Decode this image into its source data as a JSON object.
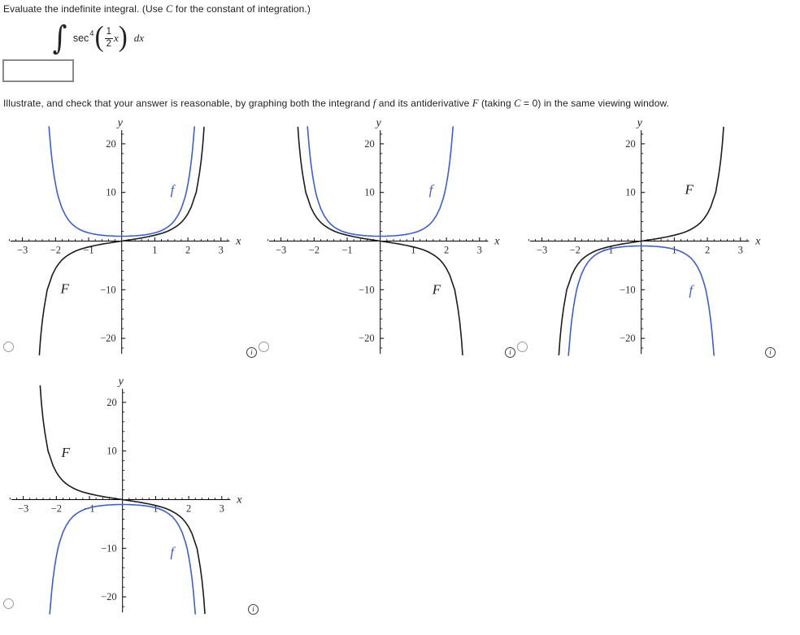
{
  "problem": {
    "prompt_parts": [
      {
        "t": "Evaluate the indefinite integral. (Use "
      },
      {
        "t": "C",
        "v": 1
      },
      {
        "t": " for the constant of integration.)"
      }
    ],
    "integral": {
      "sign": "∫",
      "func": "sec",
      "exponent": "4",
      "open_paren": "(",
      "frac_num": "1",
      "frac_den": "2",
      "variable": "x",
      "close_paren": ")",
      "differential": "dx"
    },
    "answer_input": {
      "value": "",
      "placeholder": ""
    }
  },
  "instruction_parts": [
    {
      "t": "Illustrate, and check that your answer is reasonable, by graphing both the integrand "
    },
    {
      "t": "f",
      "v": 1
    },
    {
      "t": " and its antiderivative "
    },
    {
      "t": "F",
      "v": 1
    },
    {
      "t": " (taking "
    },
    {
      "t": "C",
      "v": 1
    },
    {
      "t": " = 0) in the same viewing window."
    }
  ],
  "icons": {
    "info_glyph": "i"
  },
  "colors": {
    "f_curve": "#3F5FC5",
    "F_curve": "#1c1c1c",
    "axis": "#000000",
    "tick_label": "#2e2e2e"
  },
  "curves": {
    "f_pos": [
      [
        -2.2,
        23.5
      ],
      [
        -2.14,
        18.8
      ],
      [
        -2.1,
        16.3
      ],
      [
        -2.05,
        13.7
      ],
      [
        -2.0,
        11.7
      ],
      [
        -1.95,
        10.0
      ],
      [
        -1.9,
        8.7
      ],
      [
        -1.8,
        6.7
      ],
      [
        -1.7,
        5.3
      ],
      [
        -1.6,
        4.24
      ],
      [
        -1.5,
        3.49
      ],
      [
        -1.4,
        2.92
      ],
      [
        -1.3,
        2.49
      ],
      [
        -1.2,
        2.16
      ],
      [
        -1.1,
        1.89
      ],
      [
        -1.0,
        1.69
      ],
      [
        -0.9,
        1.52
      ],
      [
        -0.8,
        1.39
      ],
      [
        -0.7,
        1.28
      ],
      [
        -0.6,
        1.2
      ],
      [
        -0.5,
        1.13
      ],
      [
        -0.4,
        1.08
      ],
      [
        -0.3,
        1.05
      ],
      [
        -0.2,
        1.02
      ],
      [
        -0.1,
        1.01
      ],
      [
        0,
        1
      ],
      [
        0.1,
        1.01
      ],
      [
        0.2,
        1.02
      ],
      [
        0.3,
        1.05
      ],
      [
        0.4,
        1.08
      ],
      [
        0.5,
        1.13
      ],
      [
        0.6,
        1.2
      ],
      [
        0.7,
        1.28
      ],
      [
        0.8,
        1.39
      ],
      [
        0.9,
        1.52
      ],
      [
        1.0,
        1.69
      ],
      [
        1.1,
        1.89
      ],
      [
        1.2,
        2.16
      ],
      [
        1.3,
        2.49
      ],
      [
        1.4,
        2.92
      ],
      [
        1.5,
        3.49
      ],
      [
        1.6,
        4.24
      ],
      [
        1.7,
        5.3
      ],
      [
        1.8,
        6.7
      ],
      [
        1.9,
        8.7
      ],
      [
        1.95,
        10.0
      ],
      [
        2.0,
        11.7
      ],
      [
        2.05,
        13.7
      ],
      [
        2.1,
        16.3
      ],
      [
        2.14,
        18.8
      ],
      [
        2.2,
        23.5
      ]
    ],
    "F_inc": [
      [
        -2.49,
        -23.4
      ],
      [
        -2.46,
        -20.6
      ],
      [
        -2.44,
        -19.1
      ],
      [
        -2.4,
        -16.5
      ],
      [
        -2.35,
        -13.9
      ],
      [
        -2.3,
        -11.9
      ],
      [
        -2.25,
        -10.0
      ],
      [
        -2.2,
        -9.0
      ],
      [
        -2.1,
        -7.0
      ],
      [
        -2.0,
        -5.63
      ],
      [
        -1.9,
        -4.62
      ],
      [
        -1.8,
        -3.85
      ],
      [
        -1.7,
        -3.26
      ],
      [
        -1.6,
        -2.79
      ],
      [
        -1.5,
        -2.4
      ],
      [
        -1.4,
        -2.08
      ],
      [
        -1.3,
        -1.81
      ],
      [
        -1.2,
        -1.58
      ],
      [
        -1.1,
        -1.38
      ],
      [
        -1.0,
        -1.2
      ],
      [
        -0.9,
        -1.05
      ],
      [
        -0.8,
        -0.9
      ],
      [
        -0.7,
        -0.77
      ],
      [
        -0.6,
        -0.64
      ],
      [
        -0.5,
        -0.52
      ],
      [
        -0.4,
        -0.41
      ],
      [
        -0.3,
        -0.3
      ],
      [
        -0.2,
        -0.2
      ],
      [
        -0.1,
        -0.1
      ],
      [
        0,
        0
      ],
      [
        0.1,
        0.1
      ],
      [
        0.2,
        0.2
      ],
      [
        0.3,
        0.3
      ],
      [
        0.4,
        0.41
      ],
      [
        0.5,
        0.52
      ],
      [
        0.6,
        0.64
      ],
      [
        0.7,
        0.77
      ],
      [
        0.8,
        0.9
      ],
      [
        0.9,
        1.05
      ],
      [
        1.0,
        1.2
      ],
      [
        1.1,
        1.38
      ],
      [
        1.2,
        1.58
      ],
      [
        1.3,
        1.81
      ],
      [
        1.4,
        2.08
      ],
      [
        1.5,
        2.4
      ],
      [
        1.6,
        2.79
      ],
      [
        1.7,
        3.26
      ],
      [
        1.8,
        3.85
      ],
      [
        1.9,
        4.62
      ],
      [
        2.0,
        5.63
      ],
      [
        2.1,
        7.0
      ],
      [
        2.2,
        9.0
      ],
      [
        2.25,
        10.0
      ],
      [
        2.3,
        11.9
      ],
      [
        2.35,
        13.9
      ],
      [
        2.4,
        16.5
      ],
      [
        2.44,
        19.1
      ],
      [
        2.46,
        20.6
      ],
      [
        2.49,
        23.4
      ]
    ]
  },
  "chart_data": [
    {
      "type": "line",
      "title": "",
      "xlabel": "x",
      "ylabel": "y",
      "xticks": [
        -3,
        -2,
        -1,
        1,
        2,
        3
      ],
      "yticks": [
        -20,
        -10,
        10,
        20
      ],
      "xlim": [
        -3.36,
        3.26
      ],
      "ylim": [
        -23.2,
        22.8
      ],
      "grid": false,
      "series": [
        {
          "name": "f",
          "ref": "f_pos",
          "negate": false,
          "color_key": "f_curve"
        },
        {
          "name": "F",
          "ref": "F_inc",
          "negate": false,
          "color_key": "F_curve"
        }
      ],
      "labels": [
        {
          "text": "f",
          "x": 1.53,
          "y": 10.6,
          "color_key": "f_curve"
        },
        {
          "text": "F",
          "x": -1.72,
          "y": -9.7,
          "color_key": "F_curve"
        }
      ]
    },
    {
      "type": "line",
      "title": "",
      "xlabel": "x",
      "ylabel": "y",
      "xticks": [
        -3,
        -2,
        -1,
        1,
        2,
        3
      ],
      "yticks": [
        -20,
        -10,
        10,
        20
      ],
      "xlim": [
        -3.36,
        3.26
      ],
      "ylim": [
        -23.2,
        22.8
      ],
      "grid": false,
      "series": [
        {
          "name": "f",
          "ref": "f_pos",
          "negate": false,
          "color_key": "f_curve"
        },
        {
          "name": "F",
          "ref": "F_inc",
          "negate": true,
          "color_key": "F_curve"
        }
      ],
      "labels": [
        {
          "text": "f",
          "x": 1.53,
          "y": 10.6,
          "color_key": "f_curve"
        },
        {
          "text": "F",
          "x": 1.7,
          "y": -9.9,
          "color_key": "F_curve"
        }
      ]
    },
    {
      "type": "line",
      "title": "",
      "xlabel": "x",
      "ylabel": "y",
      "xticks": [
        -3,
        -2,
        -1,
        1,
        2,
        3
      ],
      "yticks": [
        -20,
        -10,
        10,
        20
      ],
      "xlim": [
        -3.36,
        3.26
      ],
      "ylim": [
        -23.2,
        22.8
      ],
      "grid": false,
      "series": [
        {
          "name": "f",
          "ref": "f_pos",
          "negate": true,
          "color_key": "f_curve"
        },
        {
          "name": "F",
          "ref": "F_inc",
          "negate": false,
          "color_key": "F_curve"
        }
      ],
      "labels": [
        {
          "text": "F",
          "x": 1.45,
          "y": 10.7,
          "color_key": "F_curve"
        },
        {
          "text": "f",
          "x": 1.5,
          "y": -10.0,
          "color_key": "f_curve"
        }
      ]
    },
    {
      "type": "line",
      "title": "",
      "xlabel": "x",
      "ylabel": "y",
      "xticks": [
        -3,
        -2,
        -1,
        1,
        2,
        3
      ],
      "yticks": [
        -20,
        -10,
        10,
        20
      ],
      "xlim": [
        -3.36,
        3.26
      ],
      "ylim": [
        -23.2,
        22.8
      ],
      "grid": false,
      "series": [
        {
          "name": "f",
          "ref": "f_pos",
          "negate": true,
          "color_key": "f_curve"
        },
        {
          "name": "F",
          "ref": "F_inc",
          "negate": true,
          "color_key": "F_curve"
        }
      ],
      "labels": [
        {
          "text": "F",
          "x": -1.72,
          "y": 9.8,
          "color_key": "F_curve"
        },
        {
          "text": "f",
          "x": 1.5,
          "y": -10.7,
          "color_key": "f_curve"
        }
      ]
    }
  ]
}
